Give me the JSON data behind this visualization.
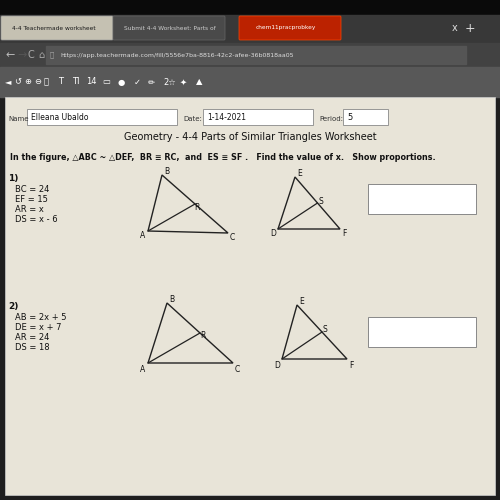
{
  "bg_color": "#111111",
  "outer_bg": "#1c1c1c",
  "page_bg": "#e8e4d8",
  "tab_bar_bg": "#3a3a3a",
  "addr_bar_bg": "#4a4a4a",
  "toolbar_bg": "#5a5a5a",
  "active_tab_color": "#c8c4b4",
  "inactive_tab_color": "#484848",
  "red_tab_color": "#cc2200",
  "title": "Geometry - 4-4 Parts of Similar Triangles Worksheet",
  "header_text": "In the figure, △ABC ~ △DEF,  BR ≡ RC,  and  ES ≡ SF .   Find the value of x.   Show proportions.",
  "name_value": "Elleana Ubaldo",
  "date_value": "1-14-2021",
  "period_value": "5",
  "url": "https://app.teachermade.com/fill/5556e7ba-8816-42c2-afee-36b0818aa05",
  "tab1": "4-4 Teachermade worksheet",
  "tab2": "Submit 4-4 Worksheet: Parts of",
  "tab3": "chem11pracprobkey",
  "p1_lines": [
    "BC = 24",
    "EF = 15",
    "AR = x",
    "DS = x - 6"
  ],
  "p2_lines": [
    "AB = 2x + 5",
    "DE = x + 7",
    "AR = 24",
    "DS = 18"
  ]
}
